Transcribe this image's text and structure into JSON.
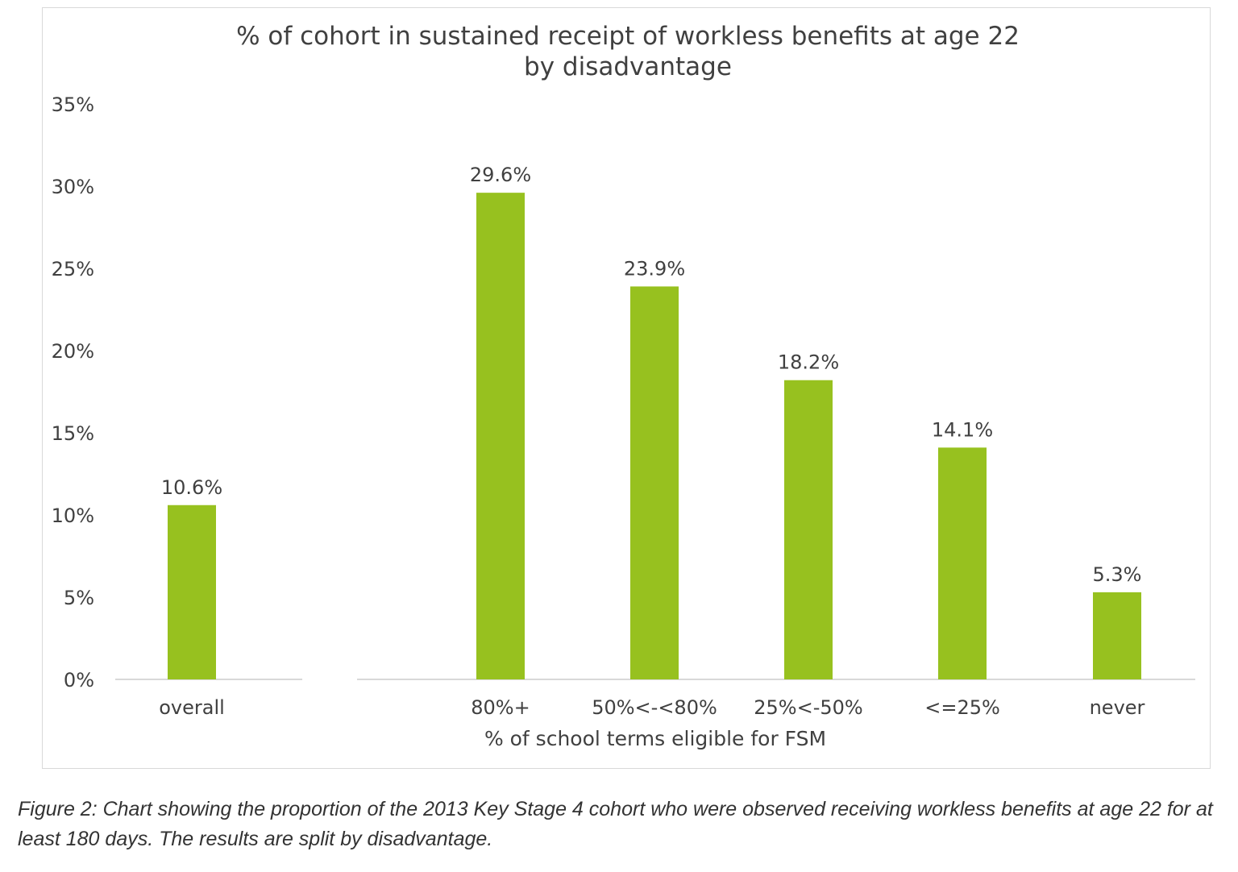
{
  "page_header_fragment": "",
  "chart_data": {
    "type": "bar",
    "title_lines": [
      "% of cohort in sustained receipt of workless benefits at age 22",
      "by disadvantage"
    ],
    "xlabel": "% of school terms eligible for FSM",
    "ylabel": "",
    "ylim": [
      0,
      35
    ],
    "y_ticks": [
      "0%",
      "5%",
      "10%",
      "15%",
      "20%",
      "25%",
      "30%",
      "35%"
    ],
    "y_tick_values": [
      0,
      5,
      10,
      15,
      20,
      25,
      30,
      35
    ],
    "grid": false,
    "legend": "none",
    "bar_color": "#97c11f",
    "groups": [
      {
        "categories": [
          "overall"
        ]
      },
      {
        "categories": [
          "80%+",
          "50%<-<80%",
          "25%<-50%",
          "<=25%",
          "never"
        ]
      }
    ],
    "categories": [
      "overall",
      "80%+",
      "50%<-<80%",
      "25%<-50%",
      "<=25%",
      "never"
    ],
    "values": [
      10.6,
      29.6,
      23.9,
      18.2,
      14.1,
      5.3
    ],
    "data_labels": [
      "10.6%",
      "29.6%",
      "23.9%",
      "18.2%",
      "14.1%",
      "5.3%"
    ]
  },
  "caption": "Figure 2: Chart showing the proportion of the 2013 Key Stage 4 cohort who were observed receiving workless benefits at age 22 for at least 180 days. The results are split by disadvantage."
}
